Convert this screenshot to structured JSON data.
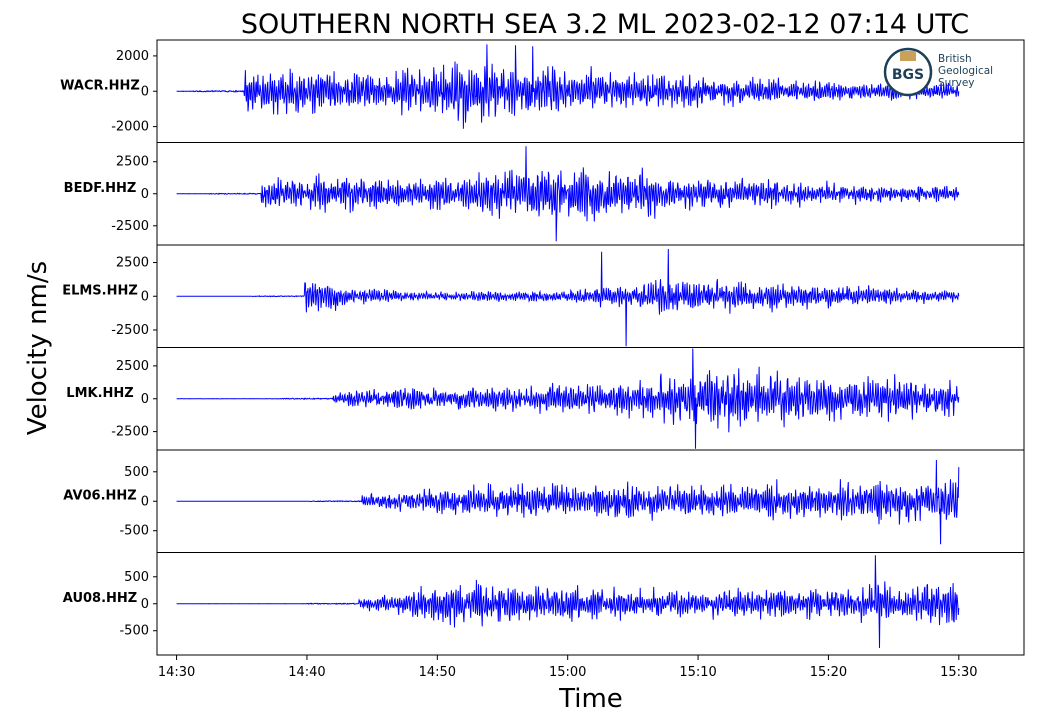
{
  "chart_data": {
    "type": "line",
    "title": "SOUTHERN NORTH SEA 3.2 ML   2023-02-12 07:14 UTC",
    "xlabel": "Time",
    "ylabel": "Velocity nm/s",
    "x_ticks": [
      "14:30",
      "14:40",
      "14:50",
      "15:00",
      "15:10",
      "15:20",
      "15:30"
    ],
    "x_range_minutes": [
      -1.5,
      65
    ],
    "series_color": "#0000ff",
    "logo": {
      "text": "BGS",
      "lines": [
        "British",
        "Geological",
        "Survey"
      ],
      "primary_color": "#1d3f57",
      "accent_color": "#c9a15a"
    },
    "panels": [
      {
        "station": "WACR.HHZ",
        "ylim": [
          -2900,
          2900
        ],
        "yticks": [
          2000,
          0,
          -2000
        ],
        "ytick_labels": [
          "2000",
          "0",
          "-2000"
        ],
        "onset_min": 5.2,
        "amp": 1300,
        "envelope": [
          [
            0,
            0.9
          ],
          [
            6,
            0.9
          ],
          [
            10,
            0.75
          ],
          [
            17,
            1.3
          ],
          [
            23,
            1.0
          ],
          [
            30,
            0.75
          ],
          [
            45,
            0.45
          ],
          [
            60,
            0.3
          ]
        ],
        "spikes": [
          [
            23.8,
            2650
          ],
          [
            26.0,
            2600
          ],
          [
            27.3,
            2550
          ]
        ],
        "end_min": 60
      },
      {
        "station": "BEDF.HHZ",
        "ylim": [
          -4000,
          4000
        ],
        "yticks": [
          2500,
          0,
          -2500
        ],
        "ytick_labels": [
          "2500",
          "0",
          "-2500"
        ],
        "onset_min": 6.5,
        "amp": 1500,
        "envelope": [
          [
            0,
            0.85
          ],
          [
            6,
            0.95
          ],
          [
            10,
            0.7
          ],
          [
            16,
            0.9
          ],
          [
            21,
            1.55
          ],
          [
            27,
            1.3
          ],
          [
            34,
            0.8
          ],
          [
            48,
            0.45
          ],
          [
            60,
            0.3
          ]
        ],
        "spikes": [
          [
            26.8,
            3700
          ],
          [
            29.1,
            -3700
          ]
        ],
        "end_min": 60
      },
      {
        "station": "ELMS.HHZ",
        "ylim": [
          -3800,
          3800
        ],
        "yticks": [
          2500,
          0,
          -2500
        ],
        "ytick_labels": [
          "2500",
          "0",
          "-2500"
        ],
        "onset_min": 9.8,
        "amp": 1000,
        "envelope": [
          [
            0,
            1.4
          ],
          [
            3,
            0.8
          ],
          [
            8,
            0.35
          ],
          [
            20,
            0.4
          ],
          [
            27,
            1.2
          ],
          [
            35,
            1.05
          ],
          [
            45,
            0.55
          ],
          [
            60,
            0.2
          ]
        ],
        "spikes": [
          [
            34.5,
            -3700
          ],
          [
            37.7,
            3500
          ],
          [
            32.6,
            3300
          ]
        ],
        "end_min": 60
      },
      {
        "station": "LMK.HHZ",
        "ylim": [
          -3900,
          3900
        ],
        "yticks": [
          2500,
          0,
          -2500
        ],
        "ytick_labels": [
          "2500",
          "0",
          "-2500"
        ],
        "onset_min": 12,
        "amp": 1600,
        "envelope": [
          [
            0,
            0.3
          ],
          [
            5,
            0.55
          ],
          [
            15,
            0.6
          ],
          [
            22,
            0.85
          ],
          [
            30,
            1.35
          ],
          [
            38,
            1.2
          ],
          [
            50,
            0.7
          ],
          [
            60,
            0.55
          ]
        ],
        "spikes": [
          [
            39.6,
            3900
          ],
          [
            39.8,
            -3800
          ]
        ],
        "end_min": 60
      },
      {
        "station": "AV06.HHZ",
        "ylim": [
          -870,
          870
        ],
        "yticks": [
          500,
          0,
          -500
        ],
        "ytick_labels": [
          "500",
          "0",
          "-500"
        ],
        "onset_min": 14.2,
        "amp": 280,
        "envelope": [
          [
            0,
            0.4
          ],
          [
            5,
            0.7
          ],
          [
            12,
            1.0
          ],
          [
            25,
            0.95
          ],
          [
            35,
            1.15
          ],
          [
            45,
            1.45
          ],
          [
            60,
            1.7
          ]
        ],
        "spikes": [
          [
            58.3,
            700
          ],
          [
            58.6,
            -730
          ],
          [
            60.0,
            580
          ]
        ],
        "end_min": 60
      },
      {
        "station": "AU08.HHZ",
        "ylim": [
          -950,
          950
        ],
        "yticks": [
          500,
          0,
          -500
        ],
        "ytick_labels": [
          "500",
          "0",
          "-500"
        ],
        "onset_min": 14.0,
        "amp": 330,
        "envelope": [
          [
            0,
            0.3
          ],
          [
            3,
            0.6
          ],
          [
            7,
            1.2
          ],
          [
            15,
            0.95
          ],
          [
            25,
            0.75
          ],
          [
            35,
            0.9
          ],
          [
            45,
            1.25
          ],
          [
            55,
            1.15
          ],
          [
            60,
            0.9
          ]
        ],
        "spikes": [
          [
            53.6,
            900
          ],
          [
            53.9,
            -820
          ]
        ],
        "end_min": 60
      }
    ]
  }
}
